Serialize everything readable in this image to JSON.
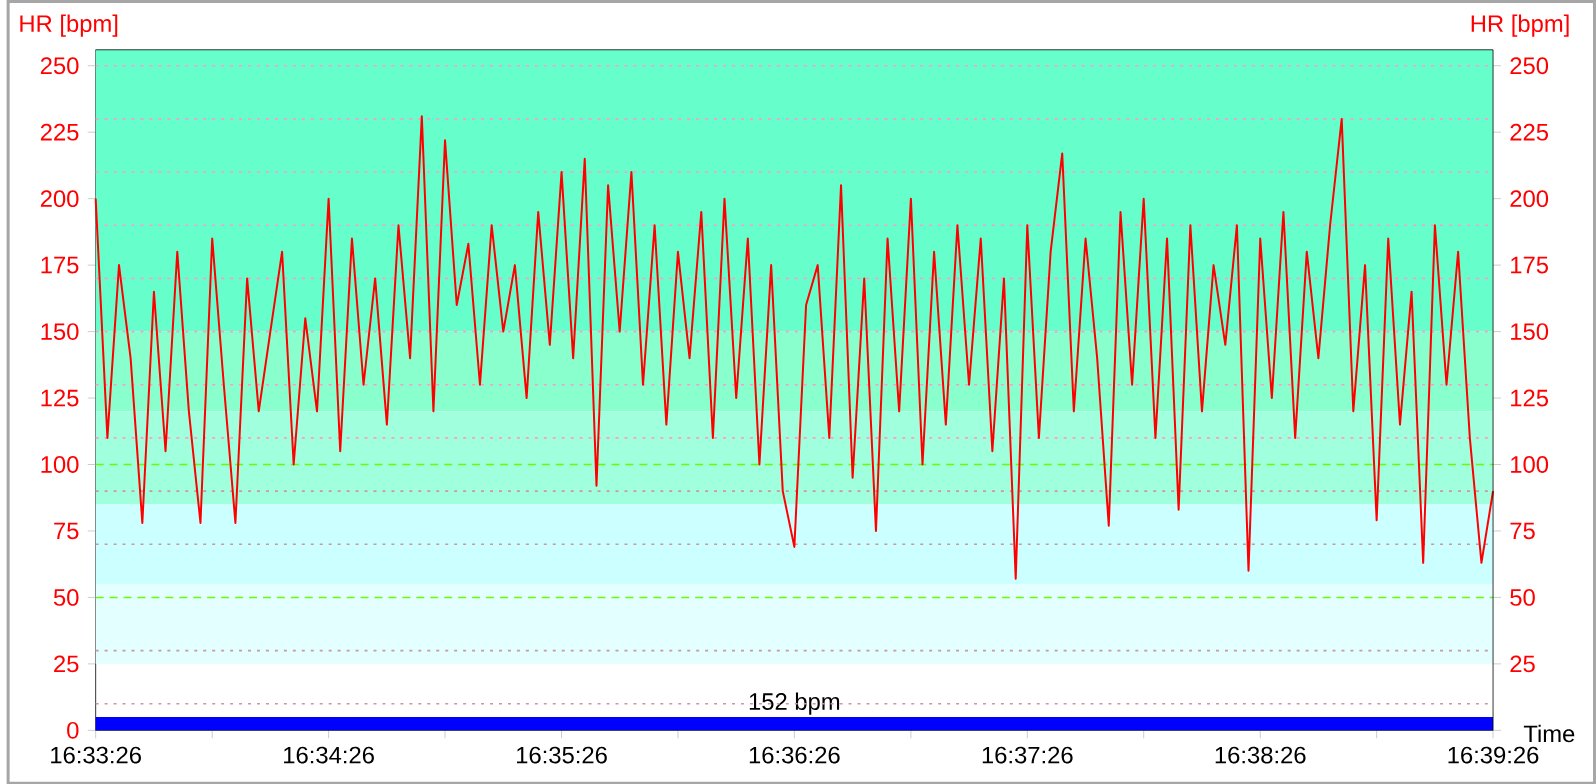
{
  "chart_data": {
    "type": "line",
    "ylabel": "HR [bpm]",
    "y2label": "HR [bpm]",
    "xlabel": "Time",
    "xlim": [
      16.55722,
      16.65722
    ],
    "ylim": [
      0,
      256
    ],
    "y2lim": [
      0,
      256
    ],
    "xticks": [
      {
        "value": 16.55722,
        "label": "16:33:26"
      },
      {
        "value": 16.56556,
        "label": null
      },
      {
        "value": 16.57389,
        "label": "16:34:26"
      },
      {
        "value": 16.58222,
        "label": null
      },
      {
        "value": 16.59056,
        "label": "16:35:26"
      },
      {
        "value": 16.59889,
        "label": null
      },
      {
        "value": 16.60722,
        "label": "16:36:26"
      },
      {
        "value": 16.61556,
        "label": null
      },
      {
        "value": 16.62389,
        "label": "16:37:26"
      },
      {
        "value": 16.63222,
        "label": null
      },
      {
        "value": 16.64056,
        "label": "16:38:26"
      },
      {
        "value": 16.64889,
        "label": null
      },
      {
        "value": 16.65722,
        "label": "16:39:26"
      }
    ],
    "yticks": [
      0,
      25,
      50,
      75,
      100,
      125,
      150,
      175,
      200,
      225,
      250
    ],
    "y2ticks": [
      {
        "value": 0,
        "label": null
      },
      25,
      50,
      75,
      100,
      125,
      150,
      175,
      200,
      225,
      250
    ],
    "marker": "none",
    "line_style": "solid",
    "x": [
      16.55722,
      16.55806,
      16.55889,
      16.55972,
      16.56056,
      16.56139,
      16.56222,
      16.56306,
      16.56389,
      16.56472,
      16.56556,
      16.56639,
      16.56722,
      16.56806,
      16.56889,
      16.56972,
      16.57056,
      16.57139,
      16.57222,
      16.57306,
      16.57389,
      16.57472,
      16.57556,
      16.57639,
      16.57722,
      16.57806,
      16.57889,
      16.57972,
      16.58056,
      16.58139,
      16.58222,
      16.58306,
      16.58389,
      16.58472,
      16.58556,
      16.58639,
      16.58722,
      16.58806,
      16.58889,
      16.58972,
      16.59056,
      16.59139,
      16.59222,
      16.59306,
      16.59389,
      16.59472,
      16.59556,
      16.59639,
      16.59722,
      16.59806,
      16.59889,
      16.59972,
      16.60056,
      16.60139,
      16.60222,
      16.60306,
      16.60389,
      16.60472,
      16.60556,
      16.60639,
      16.60722,
      16.60806,
      16.60889,
      16.60972,
      16.61056,
      16.61139,
      16.61222,
      16.61306,
      16.61389,
      16.61472,
      16.61556,
      16.61639,
      16.61722,
      16.61806,
      16.61889,
      16.61972,
      16.62056,
      16.62139,
      16.62222,
      16.62306,
      16.62389,
      16.62472,
      16.62556,
      16.62639,
      16.62722,
      16.62806,
      16.62889,
      16.62972,
      16.63056,
      16.63139,
      16.63222,
      16.63306,
      16.63389,
      16.63472,
      16.63556,
      16.63639,
      16.63722,
      16.63806,
      16.63889,
      16.63972,
      16.64056,
      16.64139,
      16.64222,
      16.64306,
      16.64389,
      16.64472,
      16.64556,
      16.64639,
      16.64722,
      16.64806,
      16.64889,
      16.64972,
      16.65056,
      16.65139,
      16.65222,
      16.65306,
      16.65389,
      16.65472,
      16.65556,
      16.65639,
      16.65722
    ],
    "series": [
      {
        "color": "#ff0000",
        "values": [
          200,
          110,
          175,
          140,
          78,
          165,
          105,
          180,
          120,
          78,
          185,
          130,
          78,
          170,
          120,
          150,
          180,
          100,
          155,
          120,
          200,
          105,
          185,
          130,
          170,
          115,
          190,
          140,
          231,
          120,
          222,
          160,
          183,
          130,
          190,
          150,
          175,
          125,
          195,
          145,
          210,
          140,
          215,
          92,
          205,
          150,
          210,
          130,
          190,
          115,
          180,
          140,
          195,
          110,
          200,
          125,
          185,
          100,
          175,
          90,
          69,
          160,
          175,
          110,
          205,
          95,
          170,
          75,
          185,
          120,
          200,
          100,
          180,
          115,
          190,
          130,
          185,
          105,
          170,
          57,
          190,
          110,
          180,
          217,
          120,
          185,
          140,
          77,
          195,
          130,
          200,
          110,
          185,
          83,
          190,
          120,
          175,
          145,
          190,
          60,
          185,
          125,
          195,
          110,
          180,
          140,
          190,
          230,
          120,
          175,
          79,
          185,
          115,
          165,
          63,
          190,
          130,
          180,
          110,
          63,
          90
        ]
      }
    ],
    "bands": [
      {
        "axis": "y",
        "from": 150,
        "to": 256,
        "color": "#66ffcc"
      },
      {
        "axis": "y",
        "from": 120,
        "to": 150,
        "color": "#88ffcc"
      },
      {
        "axis": "y",
        "from": 85,
        "to": 120,
        "color": "#a0ffdd"
      },
      {
        "axis": "y",
        "from": 55,
        "to": 85,
        "color": "#ccffff"
      },
      {
        "axis": "y",
        "from": 25,
        "to": 55,
        "color": "#e4ffff"
      },
      {
        "axis": "y",
        "from": 0,
        "to": 5,
        "label": "152 bpm",
        "color": "#0000ff"
      }
    ],
    "ref_lines": [
      {
        "axis": "y",
        "value": 10,
        "color": "#cc9999",
        "line_style": "dotted"
      },
      {
        "axis": "y",
        "value": 30,
        "color": "#cc9999",
        "line_style": "dotted"
      },
      {
        "axis": "y",
        "value": 50,
        "color": "#66ff00",
        "line_style": "dashed"
      },
      {
        "axis": "y",
        "value": 70,
        "color": "#cc9999",
        "line_style": "dotted"
      },
      {
        "axis": "y",
        "value": 90,
        "color": "#cc9999",
        "line_style": "dotted"
      },
      {
        "axis": "y",
        "value": 100,
        "color": "#66ff00",
        "line_style": "dashed"
      },
      {
        "axis": "y",
        "value": 110,
        "color": "#ff99cc",
        "line_style": "dotted"
      },
      {
        "axis": "y",
        "value": 130,
        "color": "#ff99cc",
        "line_style": "dotted"
      },
      {
        "axis": "y",
        "value": 150,
        "color": "#ff99cc",
        "line_style": "dotted"
      },
      {
        "axis": "y",
        "value": 170,
        "color": "#ff99cc",
        "line_style": "dotted"
      },
      {
        "axis": "y",
        "value": 190,
        "color": "#ff99cc",
        "line_style": "dotted"
      },
      {
        "axis": "y",
        "value": 210,
        "color": "#ff99cc",
        "line_style": "dotted"
      },
      {
        "axis": "y",
        "value": 230,
        "color": "#ff99cc",
        "line_style": "dotted"
      },
      {
        "axis": "y",
        "value": 250,
        "color": "#ff99cc",
        "line_style": "dotted"
      }
    ]
  }
}
